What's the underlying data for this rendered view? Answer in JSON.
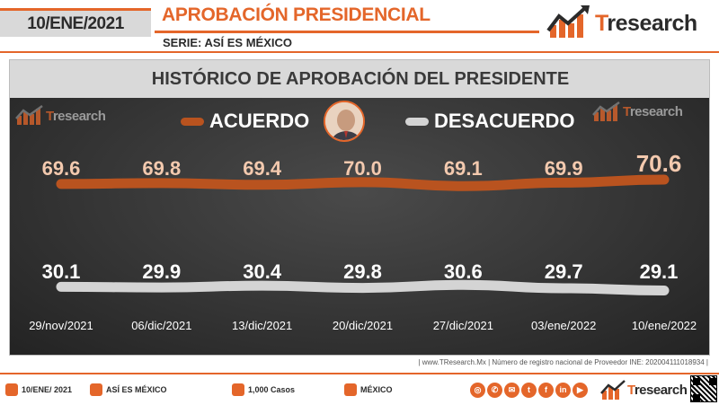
{
  "header": {
    "date": "10/ENE/2021",
    "title": "APROBACIÓN PRESIDENCIAL",
    "subtitle": "SERIE: ASÍ ES MÉXICO"
  },
  "brand": {
    "t": "T",
    "rest": "Research",
    "rest_small": "research",
    "accent": "#e4662a"
  },
  "chart_data": {
    "type": "line",
    "title": "HISTÓRICO DE APROBACIÓN DEL PRESIDENTE",
    "categories": [
      "29/nov/2021",
      "06/dic/2021",
      "13/dic/2021",
      "20/dic/2021",
      "27/dic/2021",
      "03/ene/2022",
      "10/ene/2022"
    ],
    "series": [
      {
        "name": "ACUERDO",
        "color": "#b9531f",
        "label_color": "#f3c9ae",
        "values": [
          69.6,
          69.8,
          69.4,
          70.0,
          69.1,
          69.9,
          70.6
        ],
        "labels": [
          "69.6",
          "69.8",
          "69.4",
          "70.0",
          "69.1",
          "69.9",
          "70.6"
        ]
      },
      {
        "name": "DESACUERDO",
        "color": "#d4d4d4",
        "label_color": "#ffffff",
        "values": [
          30.1,
          29.9,
          30.4,
          29.8,
          30.6,
          29.7,
          29.1
        ],
        "labels": [
          "30.1",
          "29.9",
          "30.4",
          "29.8",
          "30.6",
          "29.7",
          "29.1"
        ]
      }
    ],
    "grid": false,
    "legend": "top"
  },
  "footer": {
    "source": "| www.TResearch.Mx | Número de registro nacional de Proveedor INE: 202004111018934 |",
    "items": [
      "10/ENE/ 2021",
      "ASÍ ES MÉXICO",
      "1,000 Casos",
      "MÉXICO"
    ]
  }
}
